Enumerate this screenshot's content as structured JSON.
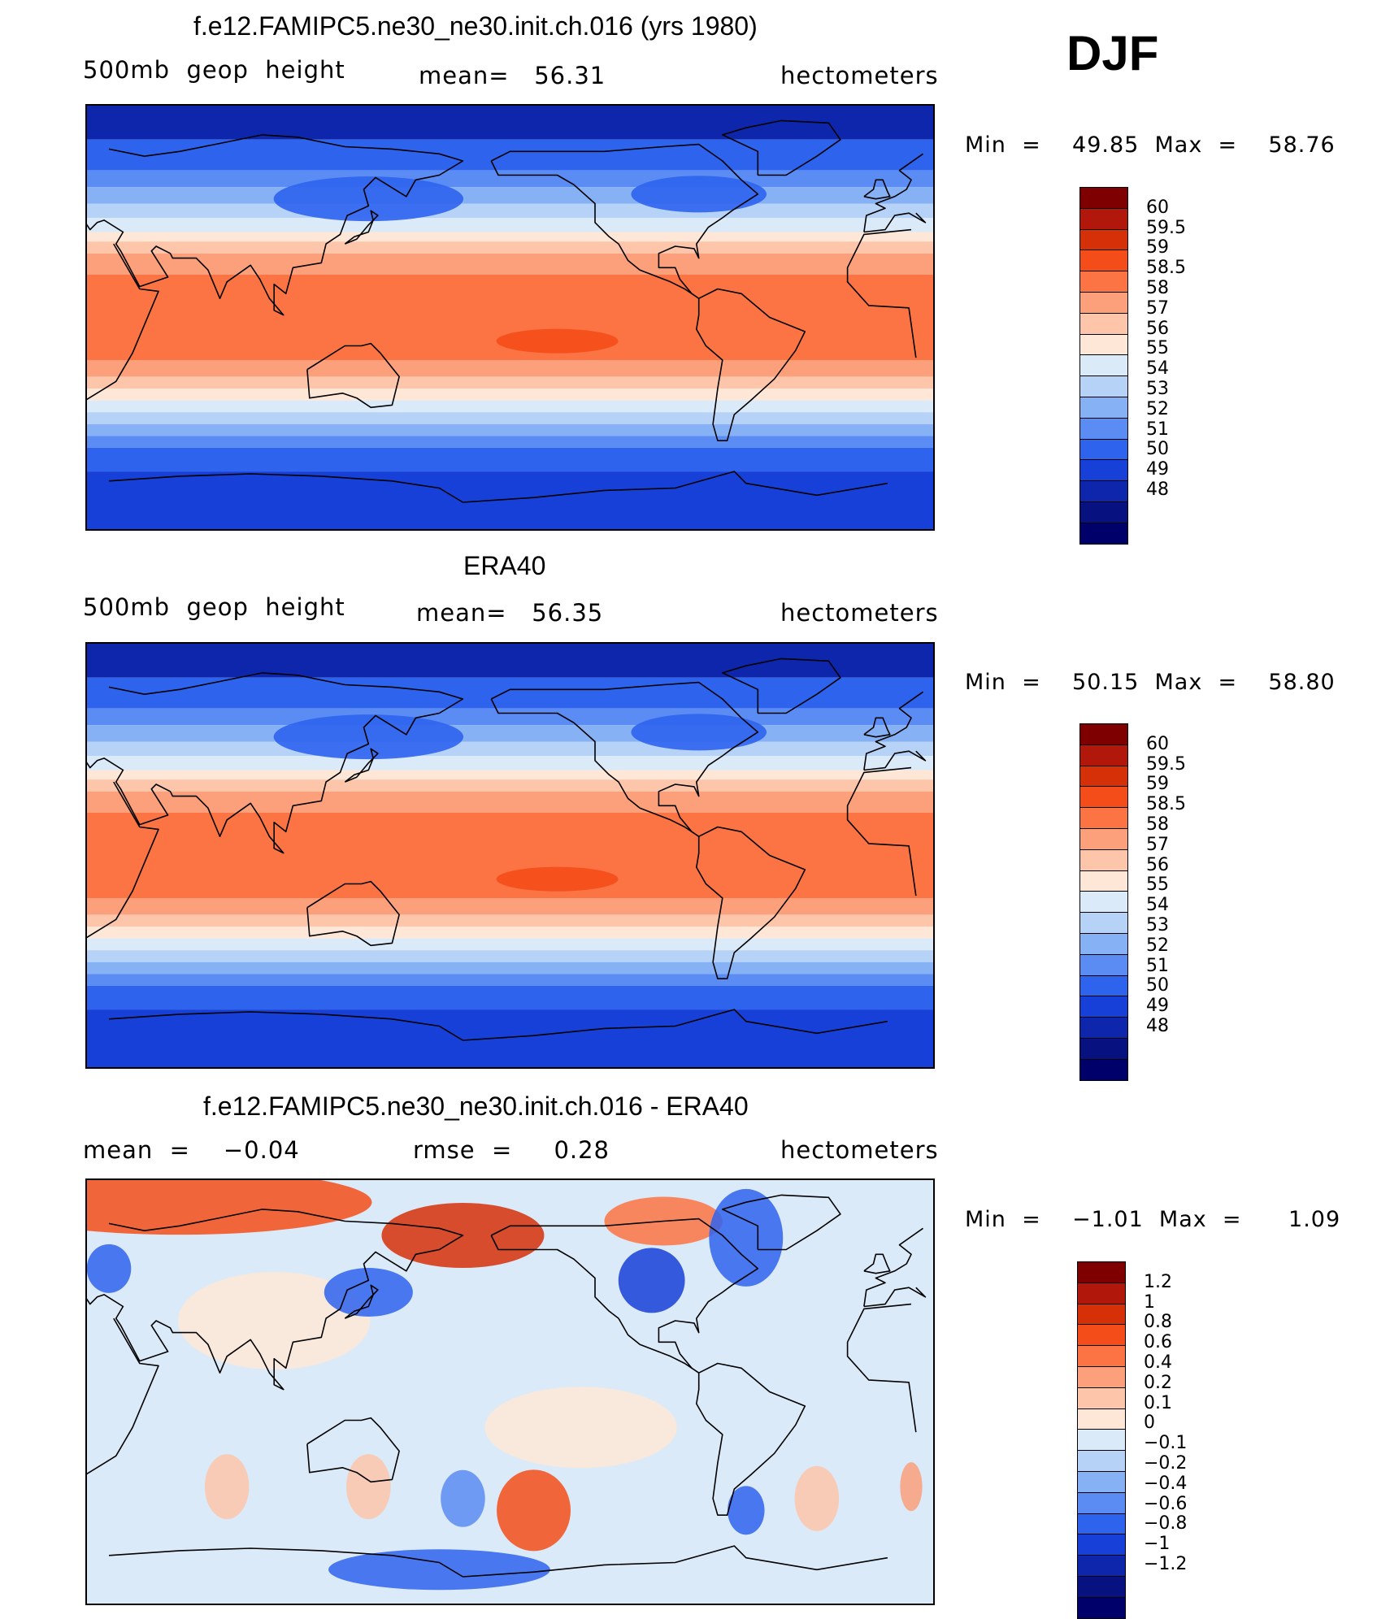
{
  "season": "DJF",
  "panels": [
    {
      "id": "model",
      "title": "f.e12.FAMIPC5.ne30_ne30.init.ch.016 (yrs 1980)",
      "left": "500mb  geop  height",
      "center": "mean=   56.31",
      "right": "hectometers",
      "stats": "Min  =    49.85  Max  =    58.76",
      "field": "mean",
      "legend_colors": [
        "#7f0000",
        "#b2170c",
        "#d63008",
        "#f54d1a",
        "#fc7444",
        "#fca07b",
        "#fdc6ab",
        "#fee7d7",
        "#dbeaf9",
        "#b6d3f7",
        "#86b1f5",
        "#5a8cf3",
        "#2e63ee",
        "#1640d8",
        "#0d26ab",
        "#071280",
        "#00006a"
      ],
      "legend_labels": [
        "60",
        "59.5",
        "59",
        "58.5",
        "58",
        "57",
        "56",
        "55",
        "54",
        "53",
        "52",
        "51",
        "50",
        "49",
        "48"
      ]
    },
    {
      "id": "obs",
      "title": "ERA40",
      "left": "500mb  geop  height",
      "center": "mean=   56.35",
      "right": "hectometers",
      "stats": "Min  =    50.15  Max  =    58.80",
      "field": "mean",
      "legend_colors": [
        "#7f0000",
        "#b2170c",
        "#d63008",
        "#f54d1a",
        "#fc7444",
        "#fca07b",
        "#fdc6ab",
        "#fee7d7",
        "#dbeaf9",
        "#b6d3f7",
        "#86b1f5",
        "#5a8cf3",
        "#2e63ee",
        "#1640d8",
        "#0d26ab",
        "#071280",
        "#00006a"
      ],
      "legend_labels": [
        "60",
        "59.5",
        "59",
        "58.5",
        "58",
        "57",
        "56",
        "55",
        "54",
        "53",
        "52",
        "51",
        "50",
        "49",
        "48"
      ]
    },
    {
      "id": "diff",
      "title": "f.e12.FAMIPC5.ne30_ne30.init.ch.016 - ERA40",
      "left": "mean  =    −0.04",
      "center": "rmse  =     0.28",
      "right": "hectometers",
      "stats": "Min  =    −1.01  Max  =      1.09",
      "field": "diff",
      "legend_colors": [
        "#7f0000",
        "#b2170c",
        "#d63008",
        "#f54d1a",
        "#fc7444",
        "#fca07b",
        "#fdc6ab",
        "#fee7d7",
        "#dbeaf9",
        "#b6d3f7",
        "#86b1f5",
        "#5a8cf3",
        "#2e63ee",
        "#1640d8",
        "#0d26ab",
        "#071280",
        "#00006a"
      ],
      "legend_labels": [
        "1.2",
        "1",
        "0.8",
        "0.6",
        "0.4",
        "0.2",
        "0.1",
        "0",
        "−0.1",
        "−0.2",
        "−0.4",
        "−0.6",
        "−0.8",
        "−1",
        "−1.2"
      ]
    }
  ]
}
